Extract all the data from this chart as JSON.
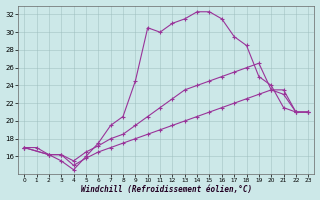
{
  "xlabel": "Windchill (Refroidissement éolien,°C)",
  "background_color": "#cce8e8",
  "line_color": "#993399",
  "xlim": [
    -0.5,
    23.5
  ],
  "ylim": [
    14,
    33
  ],
  "yticks": [
    16,
    18,
    20,
    22,
    24,
    26,
    28,
    30,
    32
  ],
  "xticks": [
    0,
    1,
    2,
    3,
    4,
    5,
    6,
    7,
    8,
    9,
    10,
    11,
    12,
    13,
    14,
    15,
    16,
    17,
    18,
    19,
    20,
    21,
    22,
    23
  ],
  "series": [
    {
      "x": [
        0,
        1,
        2,
        3,
        4,
        5,
        6,
        7,
        8,
        9,
        10,
        11,
        12,
        13,
        14,
        15,
        16,
        17,
        18,
        19,
        20,
        21,
        22,
        23
      ],
      "y": [
        17.0,
        17.0,
        16.2,
        15.5,
        14.5,
        16.0,
        17.5,
        19.5,
        20.5,
        24.5,
        30.5,
        30.0,
        31.0,
        31.5,
        32.3,
        32.3,
        31.5,
        29.5,
        28.5,
        25.0,
        24.0,
        21.5,
        21.0,
        21.0
      ]
    },
    {
      "x": [
        0,
        2,
        3,
        4,
        5,
        6,
        7,
        8,
        9,
        10,
        11,
        12,
        13,
        14,
        15,
        16,
        17,
        18,
        19,
        20,
        21,
        22,
        23
      ],
      "y": [
        17.0,
        16.2,
        16.2,
        15.5,
        16.5,
        17.2,
        18.0,
        18.5,
        19.5,
        20.5,
        21.5,
        22.5,
        23.5,
        24.0,
        24.5,
        25.0,
        25.5,
        26.0,
        26.5,
        23.5,
        23.0,
        21.0,
        21.0
      ]
    },
    {
      "x": [
        0,
        2,
        3,
        4,
        5,
        6,
        7,
        8,
        9,
        10,
        11,
        12,
        13,
        14,
        15,
        16,
        17,
        18,
        19,
        20,
        21,
        22,
        23
      ],
      "y": [
        17.0,
        16.2,
        16.2,
        15.0,
        15.8,
        16.5,
        17.0,
        17.5,
        18.0,
        18.5,
        19.0,
        19.5,
        20.0,
        20.5,
        21.0,
        21.5,
        22.0,
        22.5,
        23.0,
        23.5,
        23.5,
        21.0,
        21.0
      ]
    }
  ]
}
